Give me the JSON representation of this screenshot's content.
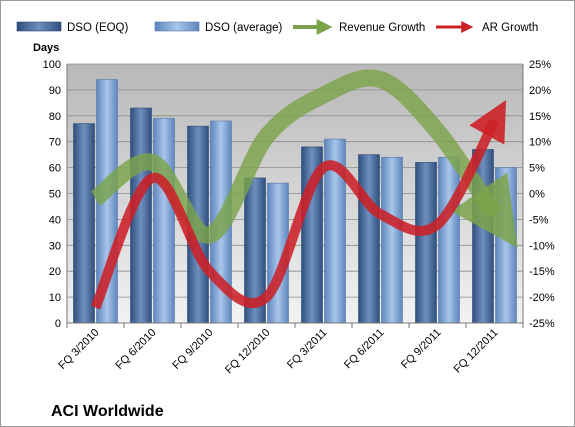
{
  "chart_data": {
    "type": "bar",
    "title": "ACI Worldwide",
    "ylabel": "Days",
    "ylim": [
      0,
      100
    ],
    "yticks": [
      0,
      10,
      20,
      30,
      40,
      50,
      60,
      70,
      80,
      90,
      100
    ],
    "y2lim": [
      -25,
      25
    ],
    "y2ticks": [
      "-25%",
      "-20%",
      "-15%",
      "-10%",
      "-5%",
      "0%",
      "5%",
      "10%",
      "15%",
      "20%",
      "25%"
    ],
    "categories": [
      "FQ 3/2010",
      "FQ 6/2010",
      "FQ 9/2010",
      "FQ 12/2010",
      "FQ 3/2011",
      "FQ 6/2011",
      "FQ 9/2011",
      "FQ 12/2011"
    ],
    "bar_series": [
      {
        "name": "DSO (EOQ)",
        "values": [
          77,
          83,
          76,
          56,
          68,
          65,
          62,
          67
        ],
        "color": "#4a6c9b"
      },
      {
        "name": "DSO (average)",
        "values": [
          94,
          79,
          78,
          54,
          71,
          64,
          64,
          60
        ],
        "color": "#7fa2cf"
      }
    ],
    "line_series": [
      {
        "name": "Revenue Growth",
        "values": [
          -1,
          6,
          -8,
          11,
          19,
          22,
          12,
          -4
        ],
        "color": "#7ba34a",
        "axis": "secondary",
        "unit": "%"
      },
      {
        "name": "AR Growth",
        "values": [
          -22,
          3,
          -15,
          -20,
          5,
          -4,
          -6,
          14
        ],
        "color": "#cc2027",
        "axis": "secondary",
        "unit": "%"
      }
    ],
    "legend_position": "top",
    "grid": true
  }
}
